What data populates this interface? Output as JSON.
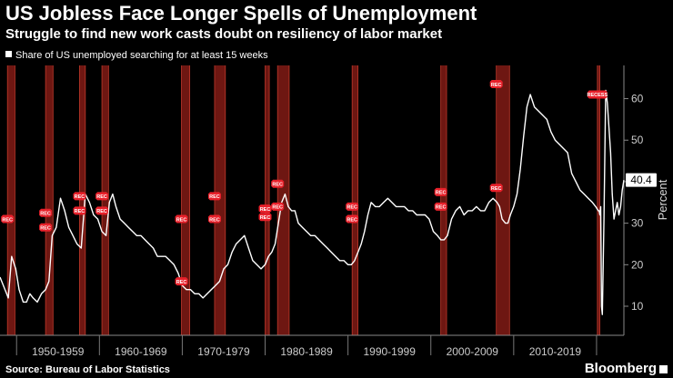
{
  "chart_data": {
    "type": "line",
    "title": "US Jobless Face Longer Spells of Unemployment",
    "subtitle": "Struggle to find new work casts doubt on resiliency of labor market",
    "legend": [
      "Share of US unemployed searching for at least 15 weeks"
    ],
    "ylabel": "Percent",
    "ylim": [
      3,
      68
    ],
    "yticks": [
      10,
      20,
      30,
      40,
      50,
      60
    ],
    "xlim": [
      1948.0,
      2023.3
    ],
    "decades": [
      "1950-1959",
      "1960-1969",
      "1970-1979",
      "1980-1989",
      "1990-1999",
      "2000-2009",
      "2010-2019"
    ],
    "last_value_label": "40.4",
    "recession_label": "REC",
    "recession_label_2020": "RECESS",
    "series": [
      {
        "name": "Share of US unemployed searching for at least 15 weeks",
        "x": [
          1948.0,
          1948.6,
          1949.0,
          1949.4,
          1949.9,
          1950.3,
          1950.8,
          1951.2,
          1951.6,
          1952.0,
          1952.5,
          1953.0,
          1953.5,
          1953.9,
          1954.3,
          1954.8,
          1955.3,
          1955.8,
          1956.3,
          1956.8,
          1957.3,
          1957.8,
          1958.3,
          1958.8,
          1959.3,
          1959.8,
          1960.3,
          1960.8,
          1961.2,
          1961.6,
          1962.0,
          1962.5,
          1963.0,
          1963.5,
          1964.0,
          1964.5,
          1965.0,
          1965.5,
          1966.0,
          1966.5,
          1967.0,
          1967.5,
          1968.0,
          1968.5,
          1969.0,
          1969.5,
          1970.0,
          1970.5,
          1971.0,
          1971.5,
          1972.0,
          1972.5,
          1973.0,
          1973.5,
          1974.0,
          1974.5,
          1975.0,
          1975.5,
          1976.0,
          1976.5,
          1977.0,
          1977.5,
          1978.0,
          1978.5,
          1979.0,
          1979.5,
          1980.0,
          1980.4,
          1980.8,
          1981.2,
          1981.6,
          1982.0,
          1982.4,
          1982.8,
          1983.2,
          1983.6,
          1984.0,
          1984.5,
          1985.0,
          1985.5,
          1986.0,
          1986.5,
          1987.0,
          1987.5,
          1988.0,
          1988.5,
          1989.0,
          1989.5,
          1990.0,
          1990.4,
          1990.8,
          1991.2,
          1991.6,
          1992.0,
          1992.4,
          1992.8,
          1993.3,
          1993.8,
          1994.3,
          1994.8,
          1995.3,
          1995.8,
          1996.3,
          1996.8,
          1997.3,
          1997.8,
          1998.3,
          1998.8,
          1999.3,
          1999.8,
          2000.3,
          2000.8,
          2001.2,
          2001.6,
          2002.0,
          2002.5,
          2003.0,
          2003.5,
          2004.0,
          2004.5,
          2005.0,
          2005.5,
          2006.0,
          2006.5,
          2007.0,
          2007.5,
          2008.0,
          2008.3,
          2008.6,
          2009.0,
          2009.3,
          2009.6,
          2010.0,
          2010.4,
          2010.8,
          2011.2,
          2011.6,
          2012.0,
          2012.5,
          2013.0,
          2013.5,
          2014.0,
          2014.5,
          2015.0,
          2015.5,
          2016.0,
          2016.5,
          2017.0,
          2017.5,
          2018.0,
          2018.5,
          2019.0,
          2019.5,
          2019.9,
          2020.2,
          2020.3,
          2020.4,
          2020.5,
          2020.6,
          2020.7,
          2020.9,
          2021.1,
          2021.3,
          2021.5,
          2021.7,
          2021.9,
          2022.1,
          2022.3,
          2022.5,
          2022.7,
          2022.9,
          2023.1,
          2023.3
        ],
        "y": [
          17,
          14,
          12,
          22,
          19,
          14,
          11,
          11,
          13,
          12,
          11,
          13,
          14,
          16,
          27,
          29,
          36,
          33,
          29,
          27,
          25,
          24,
          37,
          35,
          32,
          31,
          28,
          27,
          35,
          37,
          34,
          31,
          30,
          29,
          28,
          27,
          27,
          26,
          25,
          24,
          22,
          22,
          22,
          21,
          20,
          18,
          15,
          14,
          14,
          13,
          13,
          12,
          13,
          14,
          15,
          16,
          19,
          20,
          23,
          25,
          26,
          27,
          24,
          21,
          20,
          19,
          20,
          22,
          23,
          25,
          30,
          35,
          37,
          34,
          33,
          33,
          30,
          29,
          28,
          27,
          27,
          26,
          25,
          24,
          23,
          22,
          21,
          21,
          20,
          20,
          21,
          23,
          25,
          28,
          32,
          35,
          34,
          34,
          35,
          36,
          35,
          34,
          34,
          34,
          33,
          33,
          32,
          32,
          32,
          31,
          28,
          27,
          26,
          26,
          27,
          31,
          33,
          34,
          32,
          33,
          33,
          34,
          33,
          33,
          35,
          36,
          35,
          34,
          31,
          30,
          30,
          32,
          34,
          37,
          43,
          51,
          58,
          61,
          58,
          57,
          56,
          55,
          52,
          50,
          49,
          48,
          47,
          42,
          40,
          38,
          37,
          36,
          35,
          34,
          33,
          33,
          32,
          34,
          10,
          8,
          31,
          62,
          59,
          53,
          47,
          37,
          31,
          33,
          35,
          32,
          34,
          38,
          40.4
        ]
      }
    ],
    "recessions": [
      {
        "start": 1948.9,
        "end": 1949.8,
        "labels": [
          31
        ]
      },
      {
        "start": 1953.5,
        "end": 1954.4,
        "labels": [
          32.5,
          29
        ]
      },
      {
        "start": 1957.6,
        "end": 1958.3,
        "labels": [
          36.5,
          33
        ]
      },
      {
        "start": 1960.3,
        "end": 1961.1,
        "labels": [
          36.5,
          33
        ]
      },
      {
        "start": 1969.9,
        "end": 1970.9,
        "labels": [
          31,
          16
        ]
      },
      {
        "start": 1973.9,
        "end": 1975.2,
        "labels": [
          36.5,
          31
        ]
      },
      {
        "start": 1980.0,
        "end": 1980.5,
        "labels": [
          33.5,
          31.5
        ]
      },
      {
        "start": 1981.5,
        "end": 1982.9,
        "labels": [
          39.5,
          34
        ]
      },
      {
        "start": 1990.5,
        "end": 1991.2,
        "labels": [
          34,
          31
        ]
      },
      {
        "start": 2001.2,
        "end": 2001.9,
        "labels": [
          37.5,
          34
        ]
      },
      {
        "start": 2007.9,
        "end": 2009.5,
        "labels": [
          38.5,
          63.5
        ]
      },
      {
        "start": 2020.1,
        "end": 2020.4,
        "labels": [
          61
        ]
      }
    ]
  },
  "footer": {
    "source": "Source: Bureau of Labor Statistics",
    "brand": "Bloomberg"
  },
  "colors": {
    "background": "#000000",
    "line": "#ffffff",
    "recession_band": "#7a1a14",
    "recession_edge": "#c0392b",
    "recession_label_bg": "#e8202a",
    "axis": "#888888"
  }
}
